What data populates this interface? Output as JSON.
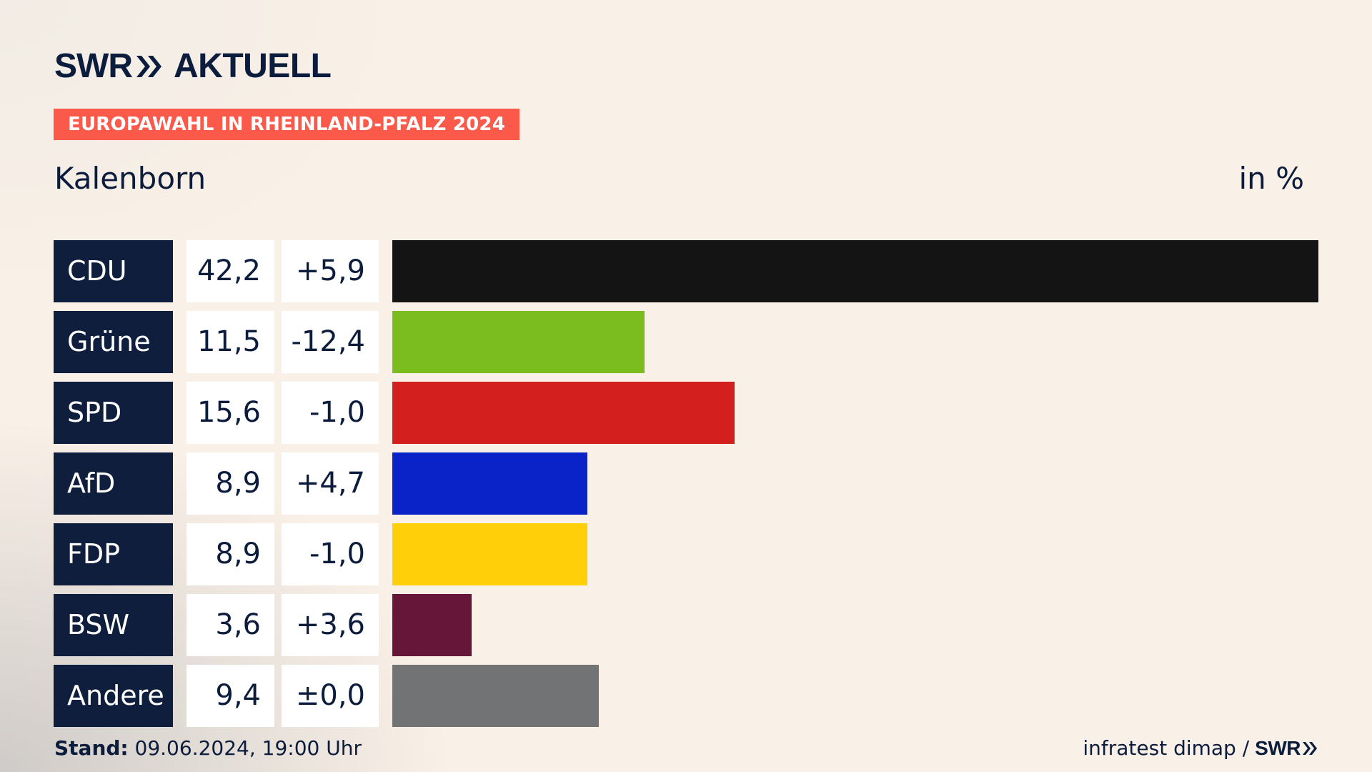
{
  "header": {
    "brand": "SWR",
    "product": "AKTUELL",
    "tag": "EUROPAWAHL IN RHEINLAND-PFALZ 2024"
  },
  "chart_data": {
    "type": "bar",
    "title": "Kalenborn",
    "unit_label": "in %",
    "categories": [
      "CDU",
      "Grüne",
      "SPD",
      "AfD",
      "FDP",
      "BSW",
      "Andere"
    ],
    "values": [
      42.2,
      11.5,
      15.6,
      8.9,
      8.9,
      3.6,
      9.4
    ],
    "value_labels": [
      "42,2",
      "11,5",
      "15,6",
      "8,9",
      "8,9",
      "3,6",
      "9,4"
    ],
    "diff_labels": [
      "+5,9",
      "-12,4",
      "-1,0",
      "+4,7",
      "-1,0",
      "+3,6",
      "±0,0"
    ],
    "colors": [
      "#141414",
      "#7bbd1f",
      "#d41f1f",
      "#0a23c8",
      "#ffcf0a",
      "#661639",
      "#727374"
    ]
  },
  "footer": {
    "stand_label": "Stand:",
    "stand_value": "09.06.2024, 19:00 Uhr",
    "source": "infratest dimap /",
    "source_brand": "SWR"
  }
}
